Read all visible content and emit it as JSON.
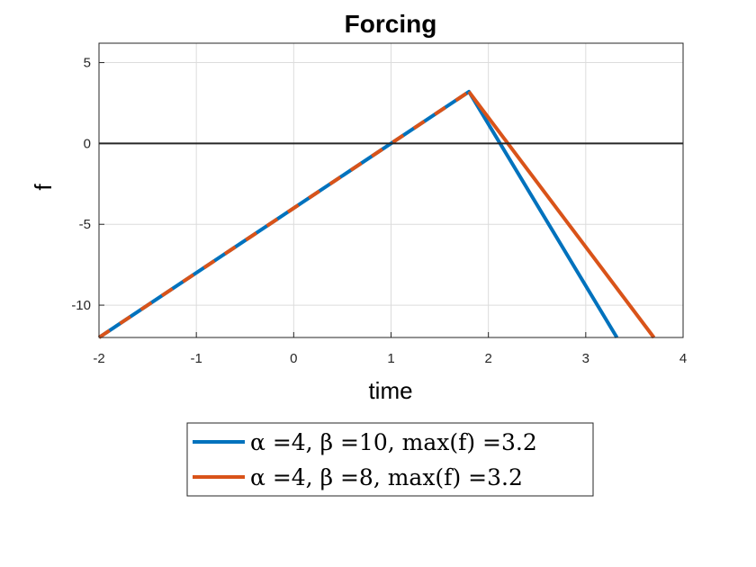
{
  "chart_data": {
    "type": "line",
    "title": "Forcing",
    "xlabel": "time",
    "ylabel": "f",
    "xlim": [
      -2,
      4
    ],
    "ylim": [
      -12,
      6.2
    ],
    "xticks": [
      -2,
      -1,
      0,
      1,
      2,
      3,
      4
    ],
    "yticks": [
      -10,
      -5,
      0,
      5
    ],
    "xtick_labels": [
      "-2",
      "-1",
      "0",
      "1",
      "2",
      "3",
      "4"
    ],
    "ytick_labels": [
      "-10",
      "-5",
      "0",
      "5"
    ],
    "grid": true,
    "zero_line": true,
    "legend_position": "bottom-outside",
    "series": [
      {
        "name": "α =4, β =10, max(f) =3.2",
        "color": "#0072BD",
        "x": [
          -2,
          1.8,
          3.32
        ],
        "y": [
          -12,
          3.2,
          -12
        ]
      },
      {
        "name": "α =4, β =8, max(f) =3.2",
        "color": "#D95319",
        "dashed_segment_until": 1.8,
        "x": [
          -2,
          1.8,
          3.7
        ],
        "y": [
          -12,
          3.2,
          -12
        ]
      }
    ]
  }
}
